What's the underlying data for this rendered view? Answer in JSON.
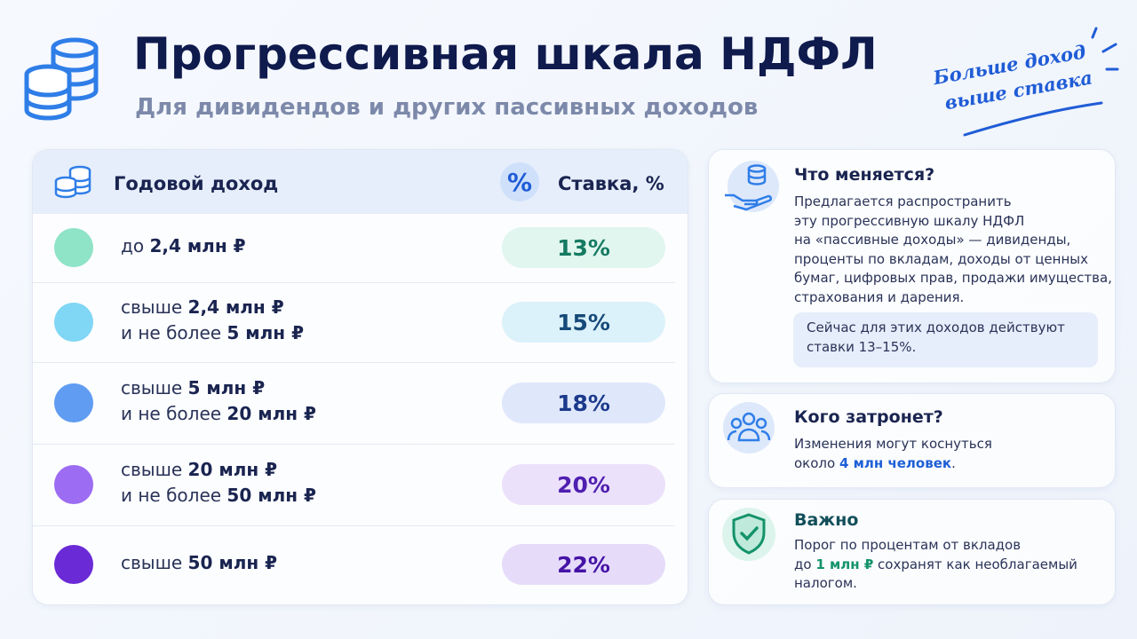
{
  "header": {
    "title": "Прогрессивная шкала НДФЛ",
    "subtitle": "Для дивидендов и других пассивных доходов",
    "badge": [
      "Больше доход",
      "выше ставка"
    ]
  },
  "table": {
    "columns": [
      "Годовой доход",
      "Ставка, %"
    ],
    "percent_icon": "%",
    "rows": [
      {
        "lines": [
          {
            "prefix": "до",
            "amount": "2,4 млн ₽"
          }
        ],
        "rate": "13%",
        "dot": "#8fe3c6",
        "pill": "#e0f6ee",
        "ink": "#157a62"
      },
      {
        "lines": [
          {
            "prefix": "свыше",
            "amount": "2,4 млн ₽"
          },
          {
            "prefix": "и не более",
            "amount": "5 млн ₽"
          }
        ],
        "rate": "15%",
        "dot": "#7fd6f5",
        "pill": "#dcf2fb",
        "ink": "#164a78"
      },
      {
        "lines": [
          {
            "prefix": "свыше",
            "amount": "5 млн ₽"
          },
          {
            "prefix": "и не более",
            "amount": "20 млн ₽"
          }
        ],
        "rate": "18%",
        "dot": "#5f9cf2",
        "pill": "#dfe8fb",
        "ink": "#1b3a8c"
      },
      {
        "lines": [
          {
            "prefix": "свыше",
            "amount": "20 млн ₽"
          },
          {
            "prefix": "и не более",
            "amount": "50 млн ₽"
          }
        ],
        "rate": "20%",
        "dot": "#9c6cf2",
        "pill": "#ece1fb",
        "ink": "#4f1fb0"
      },
      {
        "lines": [
          {
            "prefix": "свыше",
            "amount": "50 млн ₽"
          }
        ],
        "rate": "22%",
        "dot": "#6a2ad6",
        "pill": "#e6dcfa",
        "ink": "#4513a6"
      }
    ]
  },
  "cards": {
    "changes": {
      "title": "Что меняется?",
      "lines": [
        "Предлагается распространить",
        "эту прогрессивную шкалу НДФЛ",
        "на «пассивные доходы» — дивиденды,",
        "проценты по вкладам, доходы от ценных",
        "бумаг, цифровых прав, продажи имущества,",
        "страхования и дарения."
      ],
      "note": [
        "Сейчас для этих доходов действуют",
        "ставки 13–15%."
      ]
    },
    "affected": {
      "title": "Кого затронет?",
      "line1": "Изменения могут коснуться",
      "line2": {
        "before": "около ",
        "highlight": "4 млн человек",
        "after": "."
      }
    },
    "important": {
      "title": "Важно",
      "line1": "Порог по процентам от вкладов",
      "line2": {
        "before": "до ",
        "highlight": "1 млн ₽",
        "after": " сохранят как необлагаемый"
      },
      "line3": "налогом."
    }
  }
}
